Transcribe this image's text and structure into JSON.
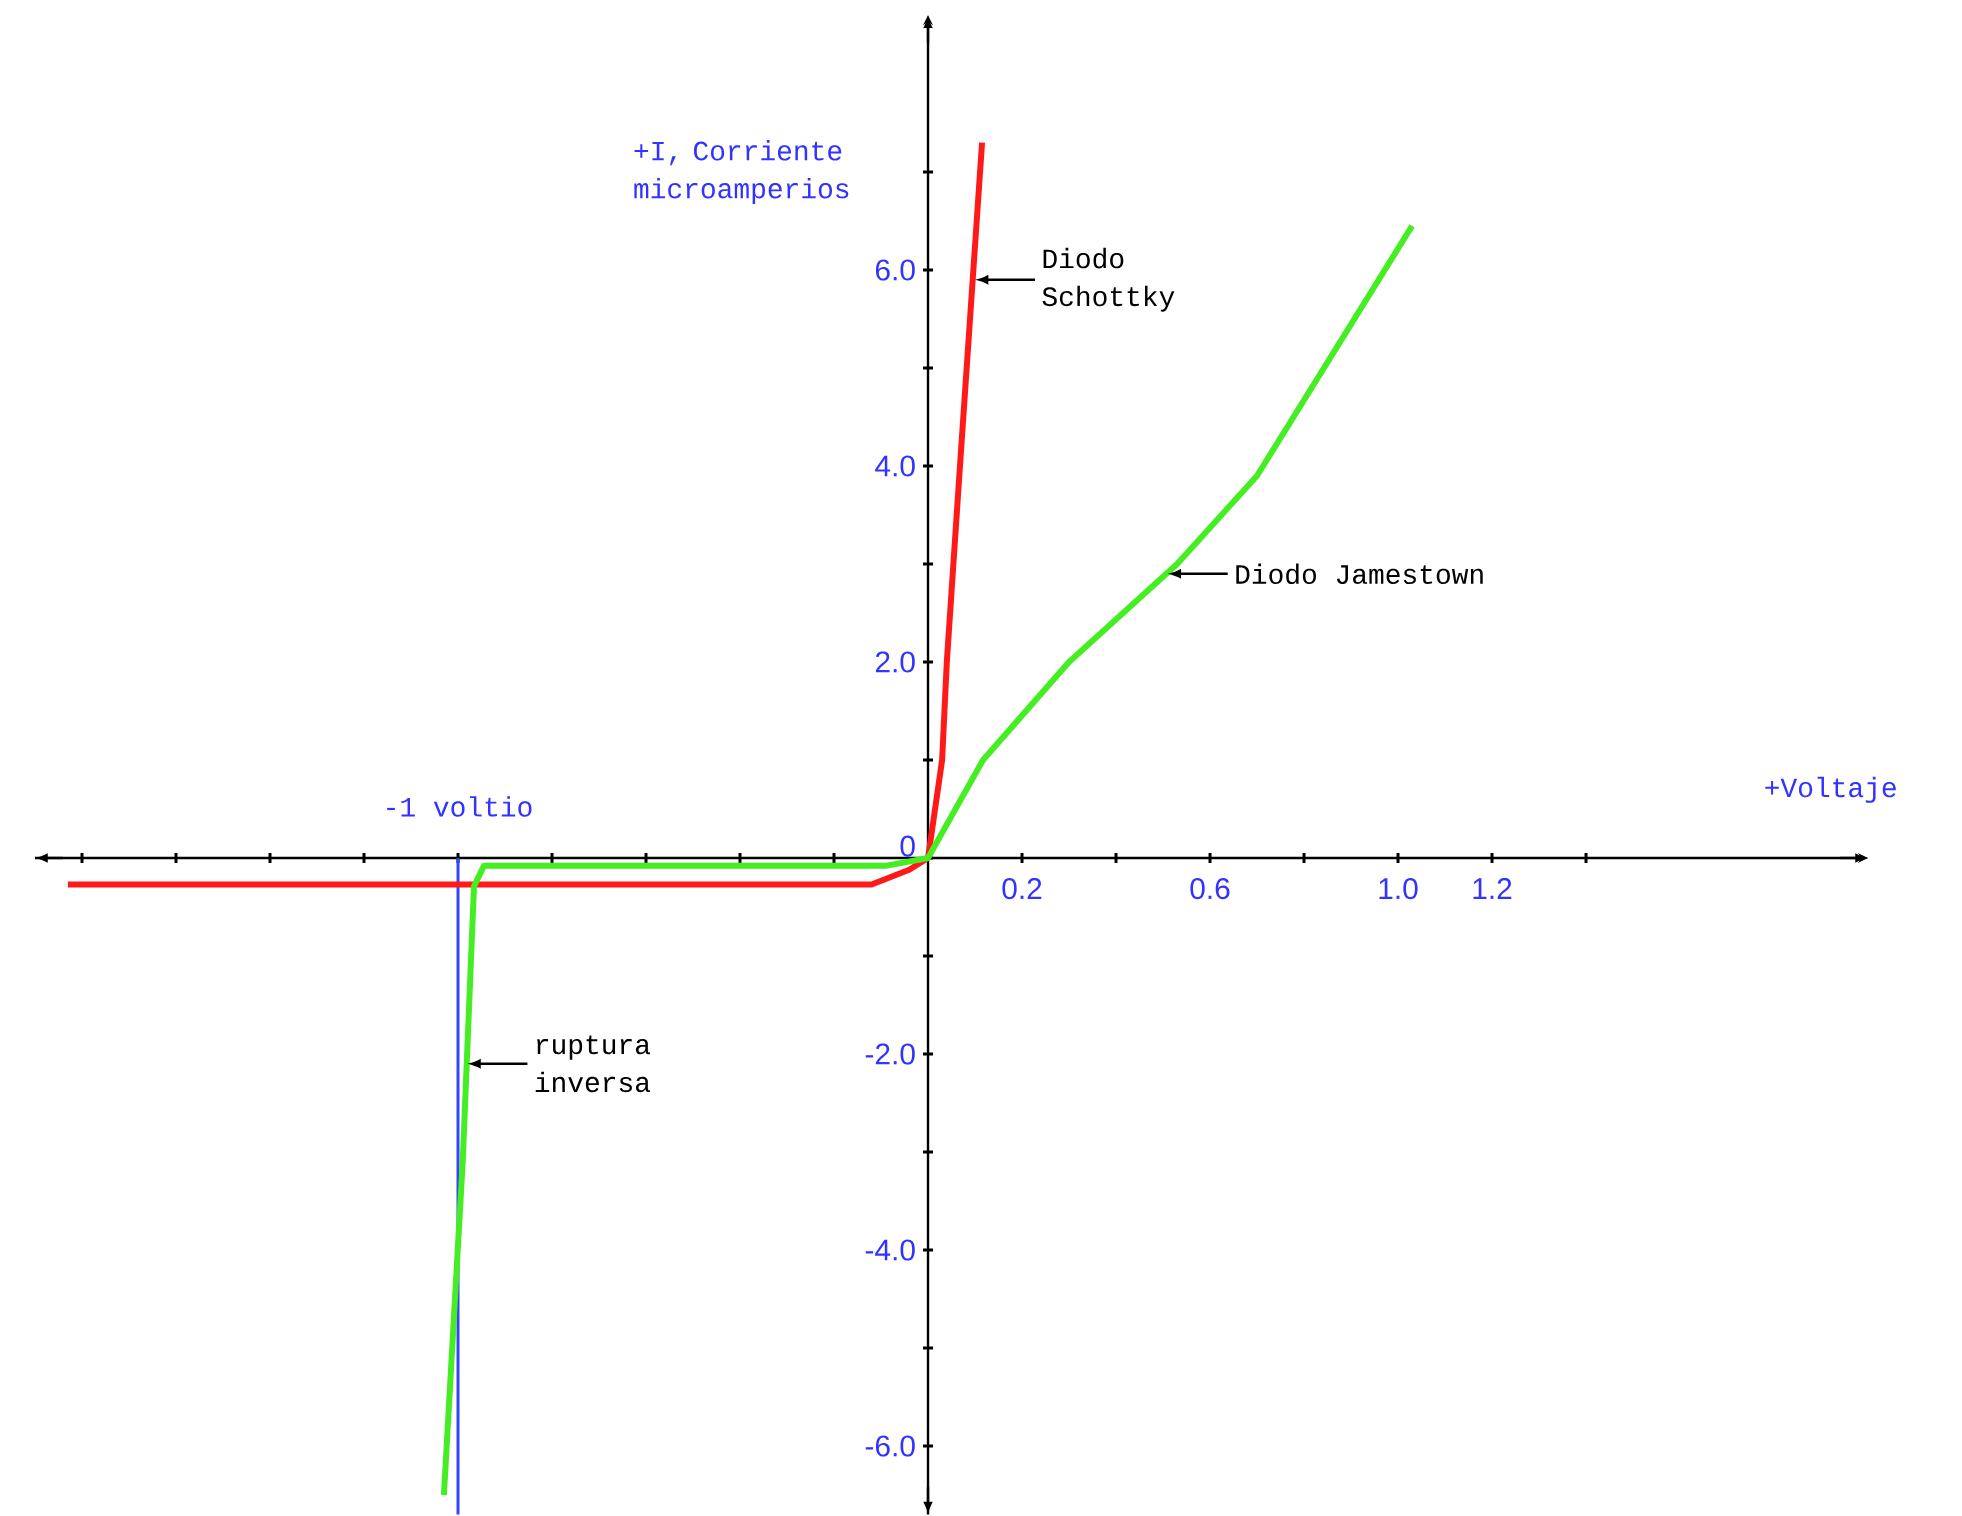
{
  "chart_data": {
    "type": "line",
    "xlabel": "+Voltaje",
    "ylabel": "+I, Corriente microamperios",
    "xlim": [
      -1.9,
      2.0
    ],
    "ylim": [
      -6.7,
      8.6
    ],
    "xticks": [
      {
        "value": -1.8,
        "label": null
      },
      {
        "value": -1.6,
        "label": null
      },
      {
        "value": -1.4,
        "label": null
      },
      {
        "value": -1.2,
        "label": null
      },
      {
        "value": -1.0,
        "label": null
      },
      {
        "value": -0.8,
        "label": null
      },
      {
        "value": -0.6,
        "label": null
      },
      {
        "value": -0.4,
        "label": null
      },
      {
        "value": -0.2,
        "label": null
      },
      0.2,
      {
        "value": 0.4,
        "label": null
      },
      0.6,
      {
        "value": 0.8,
        "label": null
      },
      {
        "value": 1.0,
        "label": "1.0"
      },
      1.2,
      {
        "value": 1.4,
        "label": null
      }
    ],
    "yticks": [
      {
        "value": 7,
        "label": null
      },
      {
        "value": 6,
        "label": "6.0"
      },
      {
        "value": 5,
        "label": null
      },
      {
        "value": 4,
        "label": "4.0"
      },
      {
        "value": 3,
        "label": null
      },
      {
        "value": 2,
        "label": "2.0"
      },
      {
        "value": 1,
        "label": null
      },
      0,
      {
        "value": -1,
        "label": null
      },
      {
        "value": -2,
        "label": "-2.0"
      },
      {
        "value": -3,
        "label": null
      },
      {
        "value": -4,
        "label": "-4.0"
      },
      {
        "value": -5,
        "label": null
      },
      {
        "value": -6,
        "label": "-6.0"
      }
    ],
    "series": [
      {
        "color": "#ff1a1a",
        "x": [
          -1.83,
          -0.12,
          -0.04,
          0,
          0.03,
          0.04,
          0.068,
          0.115
        ],
        "values": [
          -0.27,
          -0.27,
          -0.12,
          0,
          1.0,
          2.0,
          4.0,
          7.3
        ]
      },
      {
        "color": "#44ee22",
        "x": [
          -1.03,
          -0.99,
          -0.966,
          -0.945,
          -0.09,
          0,
          0.117,
          0.3,
          0.53,
          0.7,
          1.03
        ],
        "values": [
          -6.5,
          -3.1,
          -0.29,
          -0.08,
          -0.08,
          0,
          1.0,
          2.0,
          3.0,
          3.9,
          6.45
        ]
      }
    ],
    "ref_lines": [
      {
        "axis": "x",
        "value": -1,
        "label": "-1 voltio",
        "color": "#3344ff"
      }
    ],
    "annotations": [
      {
        "text": "Diodo Schottky",
        "x": 0.1,
        "y": 5.9
      },
      {
        "text": "Diodo Jamestown",
        "x": 0.51,
        "y": 2.9
      },
      {
        "text": "ruptura inversa",
        "x": -0.98,
        "y": -2.1
      }
    ],
    "grid": false,
    "marker": "none",
    "line_style": "solid"
  }
}
